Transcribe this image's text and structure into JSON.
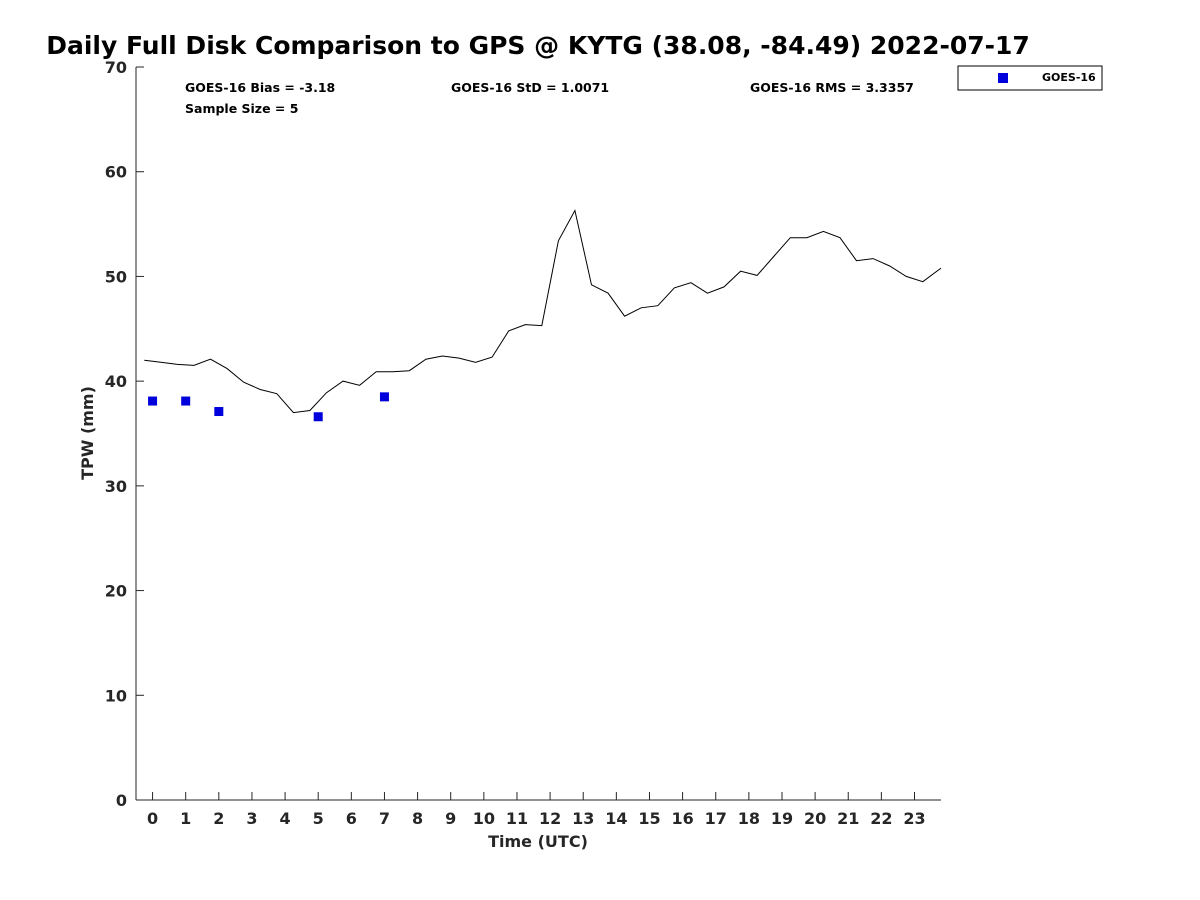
{
  "chart_data": {
    "type": "line",
    "title": "Daily Full Disk Comparison to GPS @ KYTG (38.08, -84.49) 2022-07-17",
    "xlabel": "Time (UTC)",
    "ylabel": "TPW (mm)",
    "xlim": [
      -0.5,
      23.8
    ],
    "ylim": [
      0,
      70
    ],
    "xticks": [
      "0",
      "1",
      "2",
      "3",
      "4",
      "5",
      "6",
      "7",
      "8",
      "9",
      "10",
      "11",
      "12",
      "13",
      "14",
      "15",
      "16",
      "17",
      "18",
      "19",
      "20",
      "21",
      "22",
      "23"
    ],
    "yticks": [
      "0",
      "10",
      "20",
      "30",
      "40",
      "50",
      "60",
      "70"
    ],
    "grid": false,
    "legend_position": "outside-top-right",
    "stats": {
      "bias": "GOES-16 Bias = -3.18",
      "std": "GOES-16 StD = 1.0071",
      "rms": "GOES-16 RMS = 3.3357",
      "sample": "Sample Size = 5"
    },
    "series": [
      {
        "kind": "line",
        "color": "#000000",
        "x": [
          -0.25,
          0.25,
          0.75,
          1.25,
          1.75,
          2.25,
          2.75,
          3.25,
          3.75,
          4.25,
          4.75,
          5.25,
          5.75,
          6.25,
          6.75,
          7.25,
          7.75,
          8.25,
          8.75,
          9.25,
          9.75,
          10.25,
          10.75,
          11.25,
          11.75,
          12.25,
          12.75,
          13.25,
          13.75,
          14.25,
          14.75,
          15.25,
          15.75,
          16.25,
          16.75,
          17.25,
          17.75,
          18.25,
          18.75,
          19.25,
          19.75,
          20.25,
          20.75,
          21.25,
          21.75,
          22.25,
          22.75,
          23.25,
          23.8
        ],
        "y": [
          42.0,
          41.8,
          41.6,
          41.5,
          42.1,
          41.2,
          39.9,
          39.2,
          38.8,
          37.0,
          37.2,
          38.9,
          40.0,
          39.6,
          40.9,
          40.9,
          41.0,
          42.1,
          42.4,
          42.2,
          41.8,
          42.3,
          44.8,
          45.4,
          45.3,
          53.4,
          56.3,
          49.2,
          48.4,
          46.2,
          47.0,
          47.2,
          48.9,
          49.4,
          48.4,
          49.0,
          50.5,
          50.1,
          51.9,
          53.7,
          53.7,
          54.3,
          53.7,
          51.5,
          51.7,
          51.0,
          50.0,
          49.5,
          50.8
        ]
      },
      {
        "kind": "scatter",
        "name": "GOES-16",
        "color": "#0000dd",
        "x": [
          0,
          1,
          2,
          5,
          7
        ],
        "y": [
          38.1,
          38.1,
          37.1,
          36.6,
          38.5
        ]
      }
    ]
  }
}
